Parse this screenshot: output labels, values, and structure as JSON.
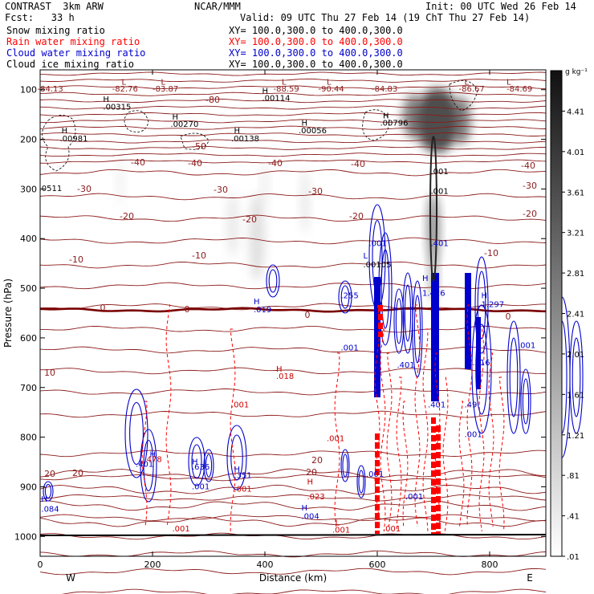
{
  "header": {
    "model": "CONTRAST  3km ARW",
    "fcst": "Fcst:   33 h",
    "center": "NCAR/MMM",
    "init": "Init: 00 UTC Wed 26 Feb 14",
    "valid": "Valid: 09 UTC Thu 27 Feb 14 (19 ChT Thu 27 Feb 14)"
  },
  "fields": [
    {
      "name": "Snow mixing ratio",
      "xy": "XY= 100.0,300.0 to 400.0,300.0",
      "color": "#000000"
    },
    {
      "name": "Rain water mixing ratio",
      "xy": "XY= 100.0,300.0 to 400.0,300.0",
      "color": "#ff0000"
    },
    {
      "name": "Cloud water mixing ratio",
      "xy": "XY= 100.0,300.0 to 400.0,300.0",
      "color": "#0000cc"
    },
    {
      "name": "Cloud ice mixing ratio",
      "xy": "XY= 100.0,300.0 to 400.0,300.0",
      "color": "#000000"
    }
  ],
  "chart_data": {
    "type": "heatmap",
    "xlabel": "Distance (km)",
    "ylabel": "Pressure (hPa)",
    "xlim": [
      0,
      900
    ],
    "ylim": [
      1040,
      60
    ],
    "x_ticks": [
      "0",
      "200",
      "400",
      "600",
      "800"
    ],
    "x_tick_values": [
      0,
      200,
      400,
      600,
      800
    ],
    "y_ticks": [
      "100",
      "200",
      "300",
      "400",
      "500",
      "600",
      "700",
      "800",
      "900",
      "1000"
    ],
    "y_tick_values": [
      100,
      200,
      300,
      400,
      500,
      600,
      700,
      800,
      900,
      1000
    ],
    "west_label": "W",
    "east_label": "E",
    "colorbar": {
      "unit": "g kg⁻¹",
      "ticks": [
        "4.41",
        "4.01",
        "3.61",
        "3.21",
        "2.81",
        "2.41",
        "2.01",
        "1.61",
        "1.21",
        ".81",
        ".41",
        ".01"
      ],
      "values": [
        4.41,
        4.01,
        3.61,
        3.21,
        2.81,
        2.41,
        2.01,
        1.61,
        1.21,
        0.81,
        0.41,
        0.01
      ],
      "range": [
        0.01,
        4.81
      ]
    },
    "temperature_contours": {
      "color": "#8b1a1a",
      "levels": [
        {
          "value": -80,
          "label": "-80",
          "p": 110
        },
        {
          "value": -50,
          "label": "-50",
          "p": 188
        },
        {
          "value": -40,
          "label": "-40",
          "p": 232
        },
        {
          "value": -30,
          "label": "-30",
          "p": 285
        },
        {
          "value": -20,
          "label": "-20",
          "p": 340
        },
        {
          "value": -10,
          "label": "-10",
          "p": 415
        },
        {
          "value": 0,
          "label": "0",
          "p": 540
        },
        {
          "value": 10,
          "label": "10",
          "p": 660
        },
        {
          "value": 20,
          "label": "20",
          "p": 870
        }
      ]
    },
    "extrema_labels": [
      {
        "text": "-84.13",
        "x": -5,
        "p": 104,
        "color": "#8b1a1a"
      },
      {
        "text": "L",
        "x": 145,
        "p": 90,
        "color": "#8b1a1a"
      },
      {
        "text": "-82.76",
        "x": 128,
        "p": 104,
        "color": "#8b1a1a"
      },
      {
        "text": "L",
        "x": 215,
        "p": 90,
        "color": "#8b1a1a"
      },
      {
        "text": "-83.87",
        "x": 200,
        "p": 104,
        "color": "#8b1a1a"
      },
      {
        "text": "L",
        "x": 430,
        "p": 90,
        "color": "#8b1a1a"
      },
      {
        "text": "-88.59",
        "x": 415,
        "p": 104,
        "color": "#8b1a1a"
      },
      {
        "text": "L",
        "x": 510,
        "p": 90,
        "color": "#8b1a1a"
      },
      {
        "text": "-90.44",
        "x": 495,
        "p": 104,
        "color": "#8b1a1a"
      },
      {
        "text": "-84.83",
        "x": 590,
        "p": 104,
        "color": "#8b1a1a"
      },
      {
        "text": "L",
        "x": 755,
        "p": 90,
        "color": "#8b1a1a"
      },
      {
        "text": "-86.67",
        "x": 745,
        "p": 104,
        "color": "#8b1a1a"
      },
      {
        "text": "L",
        "x": 830,
        "p": 90,
        "color": "#8b1a1a"
      },
      {
        "text": "-84.69",
        "x": 830,
        "p": 104,
        "color": "#8b1a1a"
      },
      {
        "text": "H",
        "x": 112,
        "p": 125,
        "color": "#000000"
      },
      {
        "text": ".00315",
        "x": 112,
        "p": 140,
        "color": "#000000"
      },
      {
        "text": "H",
        "x": 395,
        "p": 108,
        "color": "#000000"
      },
      {
        "text": ".00114",
        "x": 395,
        "p": 122,
        "color": "#000000"
      },
      {
        "text": "H",
        "x": 235,
        "p": 160,
        "color": "#000000"
      },
      {
        "text": ".00270",
        "x": 232,
        "p": 175,
        "color": "#000000"
      },
      {
        "text": "H",
        "x": 38,
        "p": 188,
        "color": "#000000"
      },
      {
        "text": ".00981",
        "x": 35,
        "p": 204,
        "color": "#000000"
      },
      {
        "text": "H",
        "x": 345,
        "p": 188,
        "color": "#000000"
      },
      {
        "text": ".00138",
        "x": 340,
        "p": 204,
        "color": "#000000"
      },
      {
        "text": "H",
        "x": 465,
        "p": 172,
        "color": "#000000"
      },
      {
        "text": ".00056",
        "x": 460,
        "p": 188,
        "color": "#000000"
      },
      {
        "text": "H",
        "x": 610,
        "p": 158,
        "color": "#000000"
      },
      {
        "text": ".00796",
        "x": 605,
        "p": 172,
        "color": "#000000"
      },
      {
        "text": ".0511",
        "x": -2,
        "p": 304,
        "color": "#000000"
      },
      {
        "text": ".001",
        "x": 695,
        "p": 270,
        "color": "#000000"
      },
      {
        "text": ".001",
        "x": 695,
        "p": 310,
        "color": "#000000"
      },
      {
        "text": ".001",
        "x": 585,
        "p": 415,
        "color": "#0000cc"
      },
      {
        "text": ".401",
        "x": 695,
        "p": 415,
        "color": "#0000cc"
      },
      {
        "text": "L",
        "x": 575,
        "p": 440,
        "color": "#0000cc"
      },
      {
        "text": ".00105",
        "x": 575,
        "p": 458,
        "color": "#000000"
      },
      {
        "text": ".255",
        "x": 535,
        "p": 520,
        "color": "#0000cc"
      },
      {
        "text": "H",
        "x": 680,
        "p": 485,
        "color": "#0000cc"
      },
      {
        "text": "1.426",
        "x": 680,
        "p": 515,
        "color": "#0000cc"
      },
      {
        "text": "H",
        "x": 380,
        "p": 532,
        "color": "#0000cc"
      },
      {
        "text": ".019",
        "x": 380,
        "p": 548,
        "color": "#0000cc"
      },
      {
        "text": "H",
        "x": 785,
        "p": 520,
        "color": "#0000cc"
      },
      {
        "text": "1.297",
        "x": 785,
        "p": 538,
        "color": "#0000cc"
      },
      {
        "text": ".001",
        "x": 535,
        "p": 625,
        "color": "#0000cc"
      },
      {
        "text": ".401",
        "x": 635,
        "p": 660,
        "color": "#0000cc"
      },
      {
        "text": "1.216",
        "x": 760,
        "p": 655,
        "color": "#0000cc"
      },
      {
        "text": ".001",
        "x": 850,
        "p": 620,
        "color": "#0000cc"
      },
      {
        "text": "H",
        "x": 420,
        "p": 668,
        "color": "#cc0000"
      },
      {
        "text": ".018",
        "x": 420,
        "p": 683,
        "color": "#cc0000"
      },
      {
        "text": ".001",
        "x": 340,
        "p": 740,
        "color": "#cc0000"
      },
      {
        "text": ".001",
        "x": 510,
        "p": 808,
        "color": "#cc0000"
      },
      {
        "text": ".401",
        "x": 690,
        "p": 740,
        "color": "#0000cc"
      },
      {
        "text": ".49",
        "x": 755,
        "p": 740,
        "color": "#0000cc"
      },
      {
        "text": ".001",
        "x": 755,
        "p": 800,
        "color": "#0000cc"
      },
      {
        "text": "H",
        "x": 195,
        "p": 840,
        "color": "#0000cc"
      },
      {
        "text": ".401",
        "x": 170,
        "p": 860,
        "color": "#0000cc"
      },
      {
        "text": ".478",
        "x": 185,
        "p": 850,
        "color": "#cc0000"
      },
      {
        "text": "H",
        "x": 270,
        "p": 855,
        "color": "#0000cc"
      },
      {
        "text": ".636",
        "x": 270,
        "p": 865,
        "color": "#0000cc"
      },
      {
        "text": ".001",
        "x": 270,
        "p": 905,
        "color": "#0000cc"
      },
      {
        "text": "H",
        "x": 345,
        "p": 870,
        "color": "#0000cc"
      },
      {
        "text": ".351",
        "x": 345,
        "p": 882,
        "color": "#0000cc"
      },
      {
        "text": ".001",
        "x": 345,
        "p": 910,
        "color": "#cc0000"
      },
      {
        "text": "H",
        "x": 475,
        "p": 895,
        "color": "#cc0000"
      },
      {
        "text": ".023",
        "x": 475,
        "p": 925,
        "color": "#cc0000"
      },
      {
        "text": "H",
        "x": 2,
        "p": 930,
        "color": "#0000cc"
      },
      {
        "text": ".084",
        "x": 2,
        "p": 950,
        "color": "#0000cc"
      },
      {
        "text": "H",
        "x": 465,
        "p": 948,
        "color": "#0000cc"
      },
      {
        "text": ".004",
        "x": 465,
        "p": 965,
        "color": "#0000cc"
      },
      {
        "text": ".001",
        "x": 580,
        "p": 880,
        "color": "#0000cc"
      },
      {
        "text": ".001",
        "x": 650,
        "p": 925,
        "color": "#0000cc"
      },
      {
        "text": ".001",
        "x": 235,
        "p": 990,
        "color": "#cc0000"
      },
      {
        "text": "L",
        "x": 525,
        "p": 978,
        "color": "#cc0000"
      },
      {
        "text": ".001",
        "x": 520,
        "p": 992,
        "color": "#cc0000"
      },
      {
        "text": ".001",
        "x": 610,
        "p": 990,
        "color": "#cc0000"
      }
    ]
  }
}
